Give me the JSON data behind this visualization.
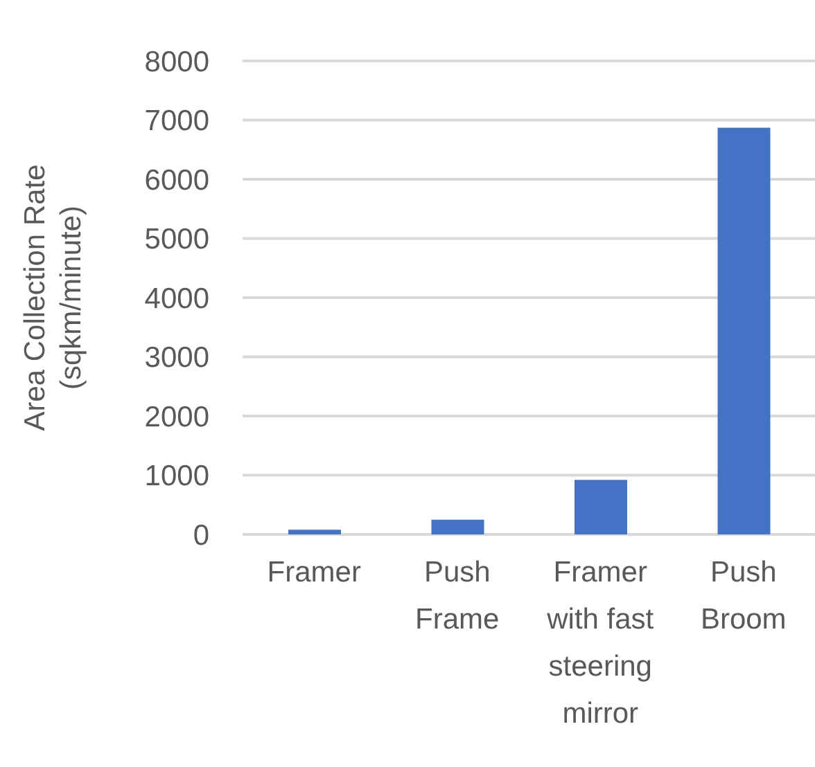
{
  "chart_data": {
    "type": "bar",
    "ylabel": "Area Collection Rate (sqkm/minute)",
    "categories": [
      "Framer",
      "Push Frame",
      "Framer with fast steering mirror",
      "Push Broom"
    ],
    "values": [
      80,
      250,
      920,
      6870
    ],
    "color": "#4472c4",
    "ylim": [
      0,
      8000
    ],
    "yticks": [
      0,
      1000,
      2000,
      3000,
      4000,
      5000,
      6000,
      7000,
      8000
    ],
    "grid": "y"
  }
}
